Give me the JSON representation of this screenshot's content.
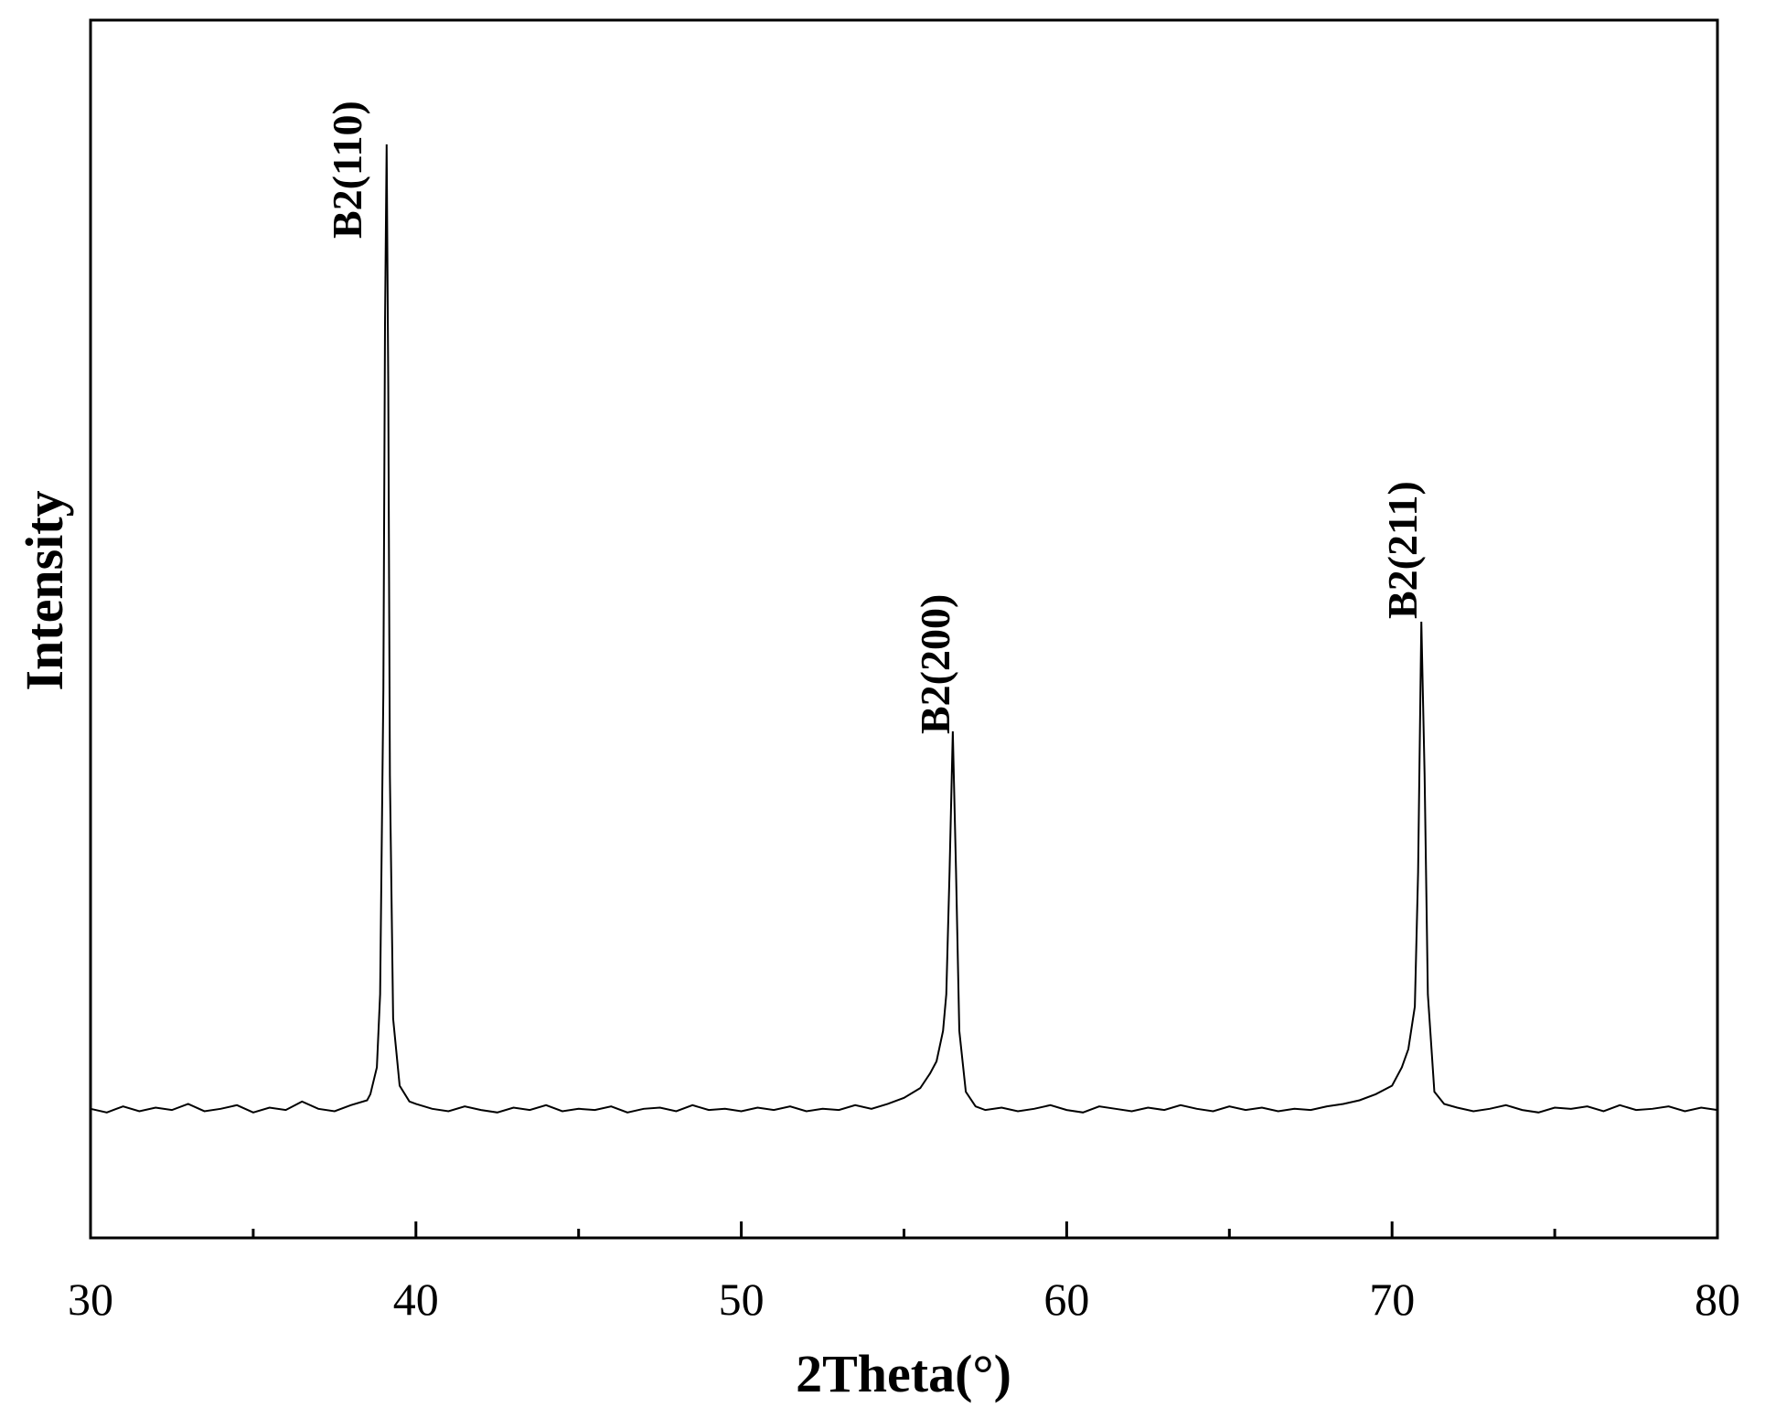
{
  "chart_data": {
    "type": "line",
    "xlabel": "2Theta(°)",
    "ylabel": "Intensity",
    "xlim": [
      30,
      80
    ],
    "xticks": [
      30,
      40,
      50,
      60,
      70,
      80
    ],
    "xminorticks": [
      35,
      45,
      55,
      65,
      75
    ],
    "ylim": [
      0,
      100
    ],
    "color": "#000000",
    "annotations": [
      "B2(110)",
      "B2(200)",
      "B2(211)"
    ],
    "x": [
      30,
      30.5,
      31,
      31.5,
      32,
      32.5,
      33,
      33.5,
      34,
      34.5,
      35,
      35.5,
      36,
      36.5,
      37,
      37.5,
      38,
      38.5,
      38.6,
      38.8,
      38.9,
      39.0,
      39.05,
      39.1,
      39.15,
      39.2,
      39.3,
      39.5,
      39.8,
      40,
      40.5,
      41,
      41.5,
      42,
      42.5,
      43,
      43.5,
      44,
      44.5,
      45,
      45.5,
      46,
      46.5,
      47,
      47.5,
      48,
      48.5,
      49,
      49.5,
      50,
      50.5,
      51,
      51.5,
      52,
      52.5,
      53,
      53.5,
      54,
      54.5,
      55,
      55.5,
      55.8,
      56.0,
      56.2,
      56.3,
      56.4,
      56.5,
      56.6,
      56.7,
      56.9,
      57.2,
      57.5,
      58,
      58.5,
      59,
      59.5,
      60,
      60.5,
      61,
      61.5,
      62,
      62.5,
      63,
      63.5,
      64,
      64.5,
      65,
      65.5,
      66,
      66.5,
      67,
      67.5,
      68,
      68.5,
      69,
      69.5,
      70,
      70.3,
      70.5,
      70.7,
      70.8,
      70.9,
      71.0,
      71.1,
      71.3,
      71.6,
      72,
      72.5,
      73,
      73.5,
      74,
      74.5,
      75,
      75.5,
      76,
      76.5,
      77,
      77.5,
      78,
      78.5,
      79,
      79.5,
      80
    ],
    "values": [
      10.6,
      10.3,
      10.8,
      10.4,
      10.7,
      10.5,
      11.0,
      10.4,
      10.6,
      10.9,
      10.3,
      10.7,
      10.5,
      11.2,
      10.6,
      10.4,
      10.9,
      11.3,
      11.8,
      14,
      20,
      45,
      75,
      89.8,
      70,
      38,
      18,
      12.5,
      11.2,
      11.0,
      10.6,
      10.4,
      10.8,
      10.5,
      10.3,
      10.7,
      10.5,
      10.9,
      10.4,
      10.6,
      10.5,
      10.8,
      10.3,
      10.6,
      10.7,
      10.4,
      10.9,
      10.5,
      10.6,
      10.4,
      10.7,
      10.5,
      10.8,
      10.4,
      10.6,
      10.5,
      10.9,
      10.6,
      11.0,
      11.5,
      12.3,
      13.5,
      14.5,
      17,
      20,
      30,
      41.6,
      30,
      17,
      12,
      10.8,
      10.5,
      10.7,
      10.4,
      10.6,
      10.9,
      10.5,
      10.3,
      10.8,
      10.6,
      10.4,
      10.7,
      10.5,
      10.9,
      10.6,
      10.4,
      10.8,
      10.5,
      10.7,
      10.4,
      10.6,
      10.5,
      10.8,
      11.0,
      11.3,
      11.8,
      12.5,
      14,
      15.5,
      19,
      30,
      50.6,
      38,
      20,
      12,
      11,
      10.7,
      10.4,
      10.6,
      10.9,
      10.5,
      10.3,
      10.7,
      10.6,
      10.8,
      10.4,
      10.9,
      10.5,
      10.6,
      10.8,
      10.4,
      10.7,
      10.5
    ]
  }
}
